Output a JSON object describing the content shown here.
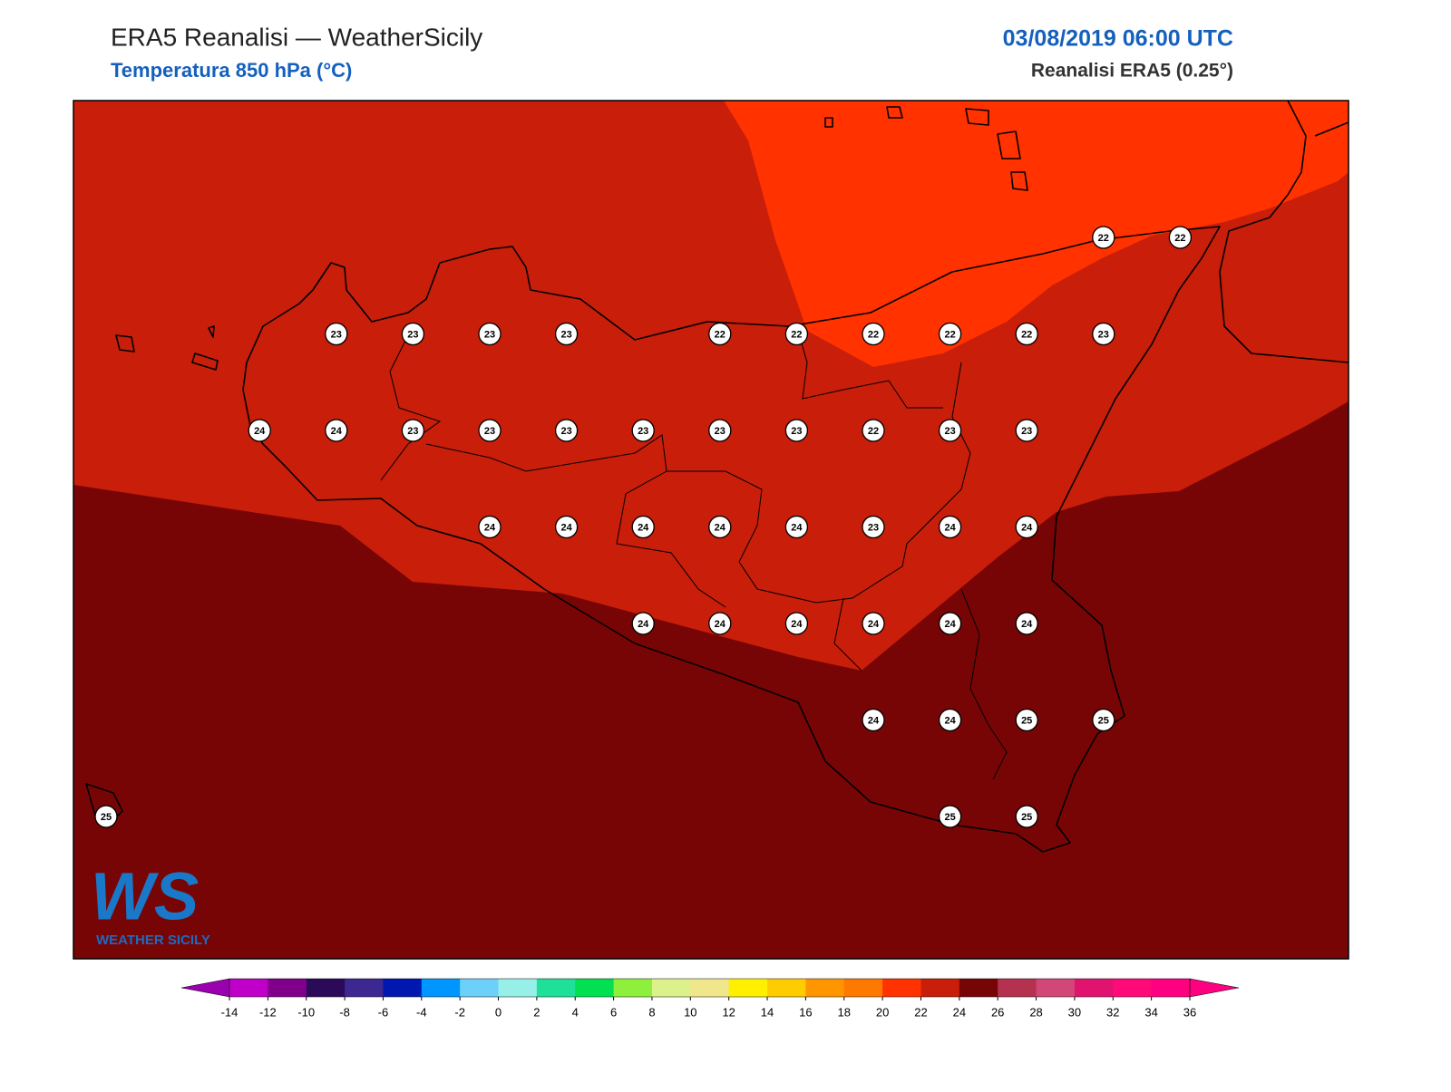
{
  "header": {
    "title": "ERA5 Reanalisi — WeatherSicily",
    "subtitle": "Temperatura 850 hPa (°C)",
    "datetime": "03/08/2019 06:00 UTC",
    "source": "Reanalisi ERA5 (0.25°)"
  },
  "map": {
    "grid": [
      [
        null,
        null,
        null,
        null,
        null,
        null,
        null,
        null,
        null,
        null,
        null,
        null,
        null,
        22,
        22
      ],
      [
        null,
        null,
        null,
        23,
        23,
        23,
        23,
        null,
        22,
        22,
        22,
        22,
        22,
        23,
        null
      ],
      [
        null,
        null,
        24,
        24,
        23,
        23,
        23,
        23,
        23,
        23,
        22,
        23,
        23,
        null,
        null
      ],
      [
        null,
        null,
        null,
        null,
        null,
        24,
        24,
        24,
        24,
        24,
        23,
        24,
        24,
        null,
        null
      ],
      [
        null,
        null,
        null,
        null,
        null,
        null,
        null,
        24,
        24,
        24,
        24,
        24,
        24,
        null,
        null
      ],
      [
        null,
        null,
        null,
        null,
        null,
        null,
        null,
        null,
        null,
        null,
        24,
        24,
        25,
        25,
        null
      ],
      [
        25,
        null,
        null,
        null,
        null,
        null,
        null,
        null,
        null,
        null,
        null,
        25,
        25,
        null,
        null
      ]
    ]
  },
  "colorbar": {
    "ticks": [
      -14,
      -12,
      -10,
      -8,
      -6,
      -4,
      -2,
      0,
      2,
      4,
      6,
      8,
      10,
      12,
      14,
      16,
      18,
      20,
      22,
      24,
      26,
      28,
      30,
      32,
      34,
      36
    ],
    "colors": [
      "#9a00b0",
      "#c000c8",
      "#80008c",
      "#2c0a5a",
      "#3c2890",
      "#0018b0",
      "#0096ff",
      "#6cd0f8",
      "#96f0e8",
      "#1ee098",
      "#00e050",
      "#8ef03c",
      "#dcf08c",
      "#f0e68c",
      "#fff000",
      "#ffcc00",
      "#ff9600",
      "#ff7800",
      "#ff3200",
      "#c81e0a",
      "#780505",
      "#b43250",
      "#d24678",
      "#e0146e",
      "#ff0a78",
      "#ff0080",
      "#ff0080"
    ]
  },
  "logo": {
    "mark": "WS",
    "text": "WEATHER SICILY"
  }
}
